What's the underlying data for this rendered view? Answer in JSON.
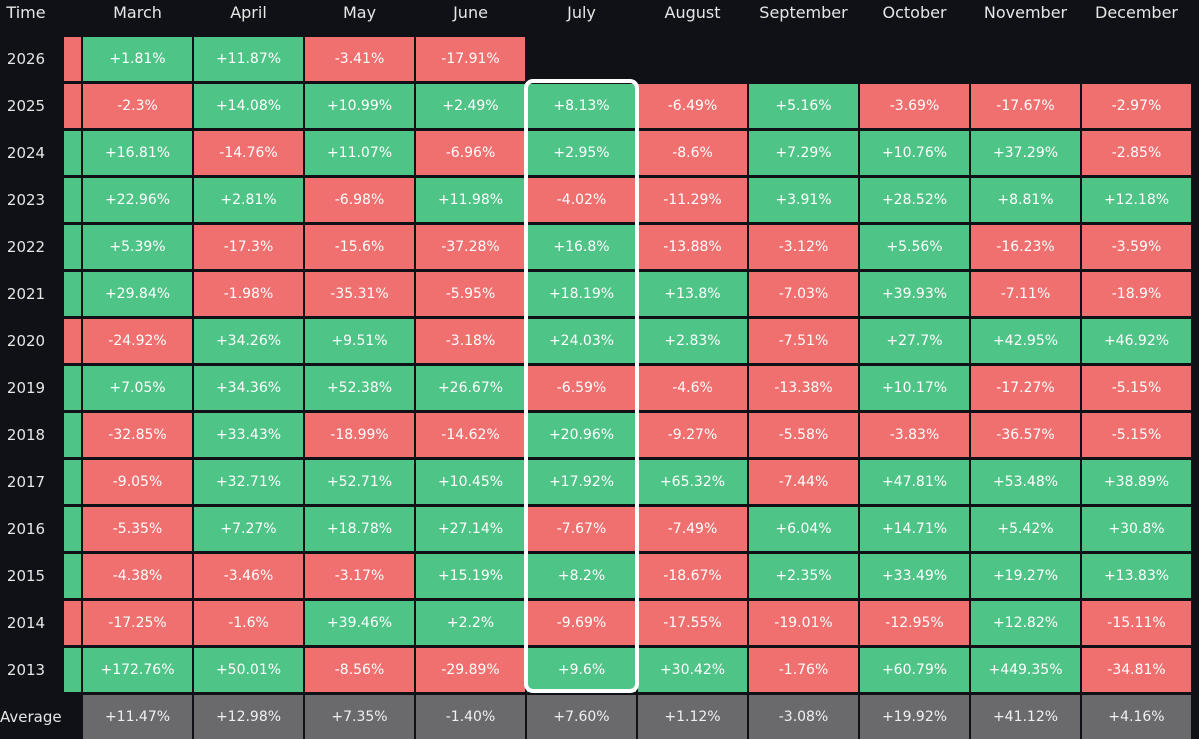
{
  "chart_data": {
    "type": "heatmap",
    "corner_label": "Time",
    "columns": [
      "March",
      "April",
      "May",
      "June",
      "July",
      "August",
      "September",
      "October",
      "November",
      "December"
    ],
    "rows": [
      {
        "label": "2026",
        "lead": "neg",
        "values": [
          "+1.81%",
          "+11.87%",
          "-3.41%",
          "-17.91%",
          null,
          null,
          null,
          null,
          null,
          null
        ]
      },
      {
        "label": "2025",
        "lead": "neg",
        "values": [
          "-2.3%",
          "+14.08%",
          "+10.99%",
          "+2.49%",
          "+8.13%",
          "-6.49%",
          "+5.16%",
          "-3.69%",
          "-17.67%",
          "-2.97%"
        ]
      },
      {
        "label": "2024",
        "lead": "pos",
        "values": [
          "+16.81%",
          "-14.76%",
          "+11.07%",
          "-6.96%",
          "+2.95%",
          "-8.6%",
          "+7.29%",
          "+10.76%",
          "+37.29%",
          "-2.85%"
        ]
      },
      {
        "label": "2023",
        "lead": "pos",
        "values": [
          "+22.96%",
          "+2.81%",
          "-6.98%",
          "+11.98%",
          "-4.02%",
          "-11.29%",
          "+3.91%",
          "+28.52%",
          "+8.81%",
          "+12.18%"
        ]
      },
      {
        "label": "2022",
        "lead": "pos",
        "values": [
          "+5.39%",
          "-17.3%",
          "-15.6%",
          "-37.28%",
          "+16.8%",
          "-13.88%",
          "-3.12%",
          "+5.56%",
          "-16.23%",
          "-3.59%"
        ]
      },
      {
        "label": "2021",
        "lead": "pos",
        "values": [
          "+29.84%",
          "-1.98%",
          "-35.31%",
          "-5.95%",
          "+18.19%",
          "+13.8%",
          "-7.03%",
          "+39.93%",
          "-7.11%",
          "-18.9%"
        ]
      },
      {
        "label": "2020",
        "lead": "neg",
        "values": [
          "-24.92%",
          "+34.26%",
          "+9.51%",
          "-3.18%",
          "+24.03%",
          "+2.83%",
          "-7.51%",
          "+27.7%",
          "+42.95%",
          "+46.92%"
        ]
      },
      {
        "label": "2019",
        "lead": "pos",
        "values": [
          "+7.05%",
          "+34.36%",
          "+52.38%",
          "+26.67%",
          "-6.59%",
          "-4.6%",
          "-13.38%",
          "+10.17%",
          "-17.27%",
          "-5.15%"
        ]
      },
      {
        "label": "2018",
        "lead": "pos",
        "values": [
          "-32.85%",
          "+33.43%",
          "-18.99%",
          "-14.62%",
          "+20.96%",
          "-9.27%",
          "-5.58%",
          "-3.83%",
          "-36.57%",
          "-5.15%"
        ]
      },
      {
        "label": "2017",
        "lead": "pos",
        "values": [
          "-9.05%",
          "+32.71%",
          "+52.71%",
          "+10.45%",
          "+17.92%",
          "+65.32%",
          "-7.44%",
          "+47.81%",
          "+53.48%",
          "+38.89%"
        ]
      },
      {
        "label": "2016",
        "lead": "pos",
        "values": [
          "-5.35%",
          "+7.27%",
          "+18.78%",
          "+27.14%",
          "-7.67%",
          "-7.49%",
          "+6.04%",
          "+14.71%",
          "+5.42%",
          "+30.8%"
        ]
      },
      {
        "label": "2015",
        "lead": "pos",
        "values": [
          "-4.38%",
          "-3.46%",
          "-3.17%",
          "+15.19%",
          "+8.2%",
          "-18.67%",
          "+2.35%",
          "+33.49%",
          "+19.27%",
          "+13.83%"
        ]
      },
      {
        "label": "2014",
        "lead": "neg",
        "values": [
          "-17.25%",
          "-1.6%",
          "+39.46%",
          "+2.2%",
          "-9.69%",
          "-17.55%",
          "-19.01%",
          "-12.95%",
          "+12.82%",
          "-15.11%"
        ]
      },
      {
        "label": "2013",
        "lead": "pos",
        "values": [
          "+172.76%",
          "+50.01%",
          "-8.56%",
          "-29.89%",
          "+9.6%",
          "+30.42%",
          "-1.76%",
          "+60.79%",
          "+449.35%",
          "-34.81%"
        ]
      }
    ],
    "average": {
      "label": "Average",
      "values": [
        "+11.47%",
        "+12.98%",
        "+7.35%",
        "-1.40%",
        "+7.60%",
        "+1.12%",
        "-3.08%",
        "+19.92%",
        "+41.12%",
        "+4.16%"
      ]
    },
    "highlighted_column": "July",
    "colors": {
      "positive": "#4fc487",
      "negative": "#f06f6f",
      "average": "#6a6a6d",
      "background": "#0f1116",
      "highlight": "#ffffff"
    }
  }
}
